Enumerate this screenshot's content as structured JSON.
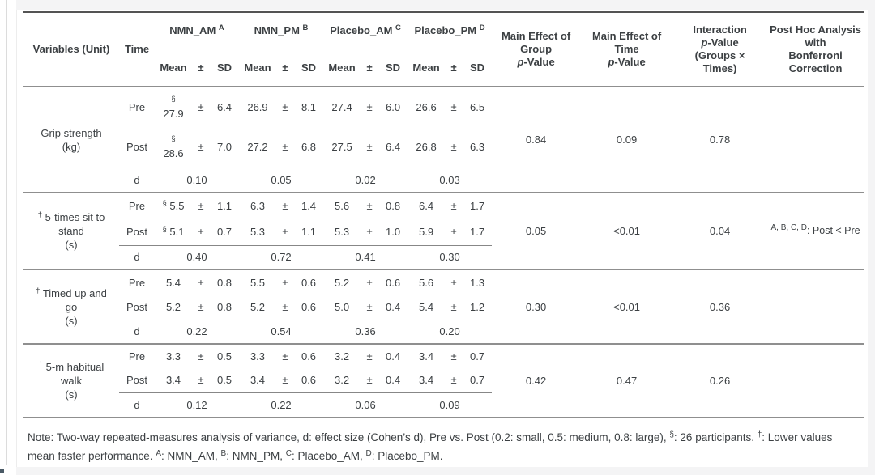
{
  "theme": {
    "outer_background": "#f4f4f5",
    "card_background": "#ffffff",
    "text_color": "#3c4043",
    "rule_dark": "#545454",
    "rule_mid": "#8f8f8f"
  },
  "table": {
    "col_headers": {
      "variables": "Variables (Unit)",
      "time": "Time",
      "mean": "Mean",
      "plus_minus": "±",
      "sd": "SD",
      "groups": [
        {
          "label": "NMN_AM",
          "sup": "A"
        },
        {
          "label": "NMN_PM",
          "sup": "B"
        },
        {
          "label": "Placebo_AM",
          "sup": "C"
        },
        {
          "label": "Placebo_PM",
          "sup": "D"
        }
      ],
      "stats": [
        {
          "lines": [
            "Main Effect of",
            "Group",
            "p-Value"
          ]
        },
        {
          "lines": [
            "Main Effect of",
            "Time",
            "p-Value"
          ]
        },
        {
          "lines": [
            "Interaction",
            "p-Value",
            "(Groups ×",
            "Times)"
          ]
        },
        {
          "lines": [
            "Post Hoc Analysis",
            "with",
            "Bonferroni",
            "Correction"
          ]
        }
      ]
    },
    "plus_minus_symbol": "±",
    "blocks": [
      {
        "variable": {
          "lines": [
            "Grip strength",
            "(kg)"
          ],
          "sup": ""
        },
        "rows": [
          {
            "time": "Pre",
            "cells": [
              {
                "sup": "§",
                "stack": true,
                "mean": "27.9",
                "sd": "6.4"
              },
              {
                "mean": "26.9",
                "sd": "8.1"
              },
              {
                "mean": "27.4",
                "sd": "6.0"
              },
              {
                "mean": "26.6",
                "sd": "6.5"
              }
            ]
          },
          {
            "time": "Post",
            "cells": [
              {
                "sup": "§",
                "stack": true,
                "mean": "28.6",
                "sd": "7.0"
              },
              {
                "mean": "27.2",
                "sd": "6.8"
              },
              {
                "mean": "27.5",
                "sd": "6.4"
              },
              {
                "mean": "26.8",
                "sd": "6.3"
              }
            ]
          }
        ],
        "d_label": "d",
        "d_values": [
          "0.10",
          "0.05",
          "0.02",
          "0.03"
        ],
        "p_group": "0.84",
        "p_time": "0.09",
        "p_interaction": "0.78",
        "post_hoc": null
      },
      {
        "variable": {
          "lines": [
            "5-times sit to",
            "stand",
            "(s)"
          ],
          "sup": "†"
        },
        "rows": [
          {
            "time": "Pre",
            "cells": [
              {
                "sup": "§",
                "mean": "5.5",
                "sd": "1.1"
              },
              {
                "mean": "6.3",
                "sd": "1.4"
              },
              {
                "mean": "5.6",
                "sd": "0.8"
              },
              {
                "mean": "6.4",
                "sd": "1.7"
              }
            ]
          },
          {
            "time": "Post",
            "cells": [
              {
                "sup": "§",
                "mean": "5.1",
                "sd": "0.7"
              },
              {
                "mean": "5.3",
                "sd": "1.1"
              },
              {
                "mean": "5.3",
                "sd": "1.0"
              },
              {
                "mean": "5.9",
                "sd": "1.7"
              }
            ]
          }
        ],
        "d_label": "d",
        "d_values": [
          "0.40",
          "0.72",
          "0.41",
          "0.30"
        ],
        "p_group": "0.05",
        "p_time": "<0.01",
        "p_interaction": "0.04",
        "post_hoc": {
          "sup": "A, B, C, D",
          "text": ": Post < Pre"
        }
      },
      {
        "variable": {
          "lines": [
            "Timed up and",
            "go",
            "(s)"
          ],
          "sup": "†"
        },
        "rows": [
          {
            "time": "Pre",
            "cells": [
              {
                "mean": "5.4",
                "sd": "0.8"
              },
              {
                "mean": "5.5",
                "sd": "0.6"
              },
              {
                "mean": "5.2",
                "sd": "0.6"
              },
              {
                "mean": "5.6",
                "sd": "1.3"
              }
            ]
          },
          {
            "time": "Post",
            "cells": [
              {
                "mean": "5.2",
                "sd": "0.8"
              },
              {
                "mean": "5.2",
                "sd": "0.6"
              },
              {
                "mean": "5.0",
                "sd": "0.4"
              },
              {
                "mean": "5.4",
                "sd": "1.2"
              }
            ]
          }
        ],
        "d_label": "d",
        "d_values": [
          "0.22",
          "0.54",
          "0.36",
          "0.20"
        ],
        "p_group": "0.30",
        "p_time": "<0.01",
        "p_interaction": "0.36",
        "post_hoc": null
      },
      {
        "variable": {
          "lines": [
            "5-m habitual",
            "walk",
            "(s)"
          ],
          "sup": "†"
        },
        "rows": [
          {
            "time": "Pre",
            "cells": [
              {
                "mean": "3.3",
                "sd": "0.5"
              },
              {
                "mean": "3.3",
                "sd": "0.6"
              },
              {
                "mean": "3.2",
                "sd": "0.4"
              },
              {
                "mean": "3.4",
                "sd": "0.7"
              }
            ]
          },
          {
            "time": "Post",
            "cells": [
              {
                "mean": "3.4",
                "sd": "0.5"
              },
              {
                "mean": "3.4",
                "sd": "0.6"
              },
              {
                "mean": "3.2",
                "sd": "0.4"
              },
              {
                "mean": "3.4",
                "sd": "0.7"
              }
            ]
          }
        ],
        "d_label": "d",
        "d_values": [
          "0.12",
          "0.22",
          "0.06",
          "0.09"
        ],
        "p_group": "0.42",
        "p_time": "0.47",
        "p_interaction": "0.26",
        "post_hoc": null
      }
    ]
  },
  "note": {
    "segments": [
      {
        "text": "Note: Two-way repeated-measures analysis of variance, d: effect size (Cohen’s d), Pre vs. Post (0.2: small, 0.5: medium, 0.8: large), "
      },
      {
        "sup": "§"
      },
      {
        "text": ": 26 participants. "
      },
      {
        "sup": "†"
      },
      {
        "text": ": Lower values mean faster performance. "
      },
      {
        "sup": "A"
      },
      {
        "text": ": NMN_AM, "
      },
      {
        "sup": "B"
      },
      {
        "text": ": NMN_PM, "
      },
      {
        "sup": "C"
      },
      {
        "text": ": Placebo_AM, "
      },
      {
        "sup": "D"
      },
      {
        "text": ": Placebo_PM."
      }
    ]
  }
}
